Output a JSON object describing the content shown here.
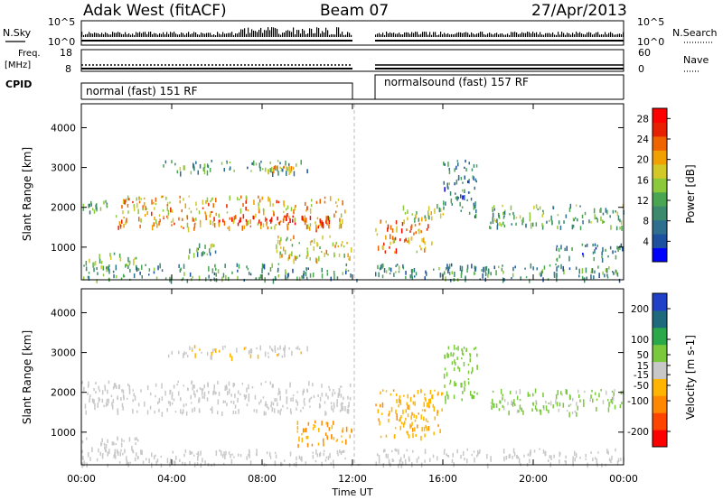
{
  "header": {
    "station": "Adak West (fitACF)",
    "beam": "Beam 07",
    "date": "27/Apr/2013"
  },
  "summary_panels": {
    "nsky_label": "N.Sky",
    "nsky_ticks": [
      "10^5",
      "10^0"
    ],
    "nsearch_label": "N.Search",
    "nsearch_ticks": [
      "10^5",
      "10^0"
    ],
    "freq_label": "Freq.",
    "freq_unit": "[MHz]",
    "freq_ticks": [
      "18",
      "8"
    ],
    "nave_label": "Nave",
    "nave_ticks": [
      "60",
      "0"
    ],
    "cpid_label": "CPID",
    "cpid_segments": [
      {
        "label": "normal (fast) 151 RF",
        "start_ut": 0,
        "end_ut": 12
      },
      {
        "label": "normalsound (fast) 157 RF",
        "start_ut": 13,
        "end_ut": 24
      }
    ]
  },
  "chart_data": [
    {
      "type": "heatmap",
      "name": "power",
      "ylabel": "Slant Range [km]",
      "y_ticks": [
        "4000",
        "3000",
        "2000",
        "1000"
      ],
      "y_tick_values": [
        4000,
        3000,
        2000,
        1000
      ],
      "ylim": [
        180,
        4600
      ],
      "xlim": [
        0,
        24
      ],
      "x_tick_labels": [
        "00:00",
        "04:00",
        "08:00",
        "12:00",
        "16:00",
        "20:00",
        "00:00"
      ],
      "x_tick_values": [
        0,
        4,
        8,
        12,
        16,
        20,
        24
      ],
      "xlabel": "Time UT",
      "data_gap_ut": [
        12,
        13
      ],
      "colorbar": {
        "label": "Power [dB]",
        "tick_labels": [
          "28",
          "24",
          "20",
          "16",
          "12",
          "8",
          "4"
        ],
        "tick_values": [
          28,
          24,
          20,
          16,
          12,
          8,
          4
        ],
        "range": [
          0,
          30
        ],
        "colors": [
          "#0000ff",
          "#1e50a0",
          "#2e6e8e",
          "#3c8a6e",
          "#4aa552",
          "#8cc83c",
          "#d2c828",
          "#f0a000",
          "#f06400",
          "#e62000",
          "#ff0000"
        ]
      },
      "echo_regions": [
        {
          "t": [
            0.0,
            1.2
          ],
          "r": [
            1900,
            2200
          ],
          "level": 9
        },
        {
          "t": [
            1.5,
            11.8
          ],
          "r": [
            1500,
            2300
          ],
          "level": 20
        },
        {
          "t": [
            6.0,
            11.0
          ],
          "r": [
            1600,
            1800
          ],
          "level": 27
        },
        {
          "t": [
            3.6,
            10.2
          ],
          "r": [
            2900,
            3200
          ],
          "level": 11
        },
        {
          "t": [
            8.0,
            9.5
          ],
          "r": [
            2950,
            3050
          ],
          "level": 18
        },
        {
          "t": [
            0.0,
            2.5
          ],
          "r": [
            500,
            900
          ],
          "level": 14
        },
        {
          "t": [
            4.5,
            6.0
          ],
          "r": [
            800,
            1100
          ],
          "level": 11
        },
        {
          "t": [
            8.5,
            12.0
          ],
          "r": [
            700,
            1300
          ],
          "level": 18
        },
        {
          "t": [
            13.0,
            15.5
          ],
          "r": [
            900,
            1700
          ],
          "level": 22
        },
        {
          "t": [
            14.0,
            16.0
          ],
          "r": [
            1700,
            2100
          ],
          "level": 15
        },
        {
          "t": [
            16.0,
            17.5
          ],
          "r": [
            1800,
            3200
          ],
          "level": 8
        },
        {
          "t": [
            18.0,
            24.0
          ],
          "r": [
            1500,
            2100
          ],
          "level": 12
        },
        {
          "t": [
            21.0,
            24.0
          ],
          "r": [
            700,
            1100
          ],
          "level": 8
        },
        {
          "t": [
            0.0,
            24.0
          ],
          "r": [
            200,
            600
          ],
          "level": 10
        }
      ]
    },
    {
      "type": "heatmap",
      "name": "velocity",
      "ylabel": "Slant Range [km]",
      "y_ticks": [
        "4000",
        "3000",
        "2000",
        "1000"
      ],
      "y_tick_values": [
        4000,
        3000,
        2000,
        1000
      ],
      "ylim": [
        180,
        4600
      ],
      "xlim": [
        0,
        24
      ],
      "x_tick_labels": [
        "00:00",
        "04:00",
        "08:00",
        "12:00",
        "16:00",
        "20:00",
        "00:00"
      ],
      "x_tick_values": [
        0,
        4,
        8,
        12,
        16,
        20,
        24
      ],
      "xlabel": "Time UT",
      "data_gap_ut": [
        12,
        13
      ],
      "colorbar": {
        "label": "Velocity [m s-1]",
        "tick_labels": [
          "200",
          "100",
          "50",
          "15",
          "-15",
          "-50",
          "-100",
          "-200"
        ],
        "tick_values": [
          200,
          100,
          50,
          15,
          -15,
          -50,
          -100,
          -200
        ],
        "range": [
          -250,
          250
        ],
        "colors": [
          "#ff0000",
          "#ff4400",
          "#ff8800",
          "#ffb400",
          "#c8c8c8",
          "#7ac83c",
          "#2aa84a",
          "#1e6a7c",
          "#2040c8"
        ]
      },
      "echo_regions": [
        {
          "t": [
            0.0,
            12.0
          ],
          "r": [
            1500,
            2300
          ],
          "level": 0
        },
        {
          "t": [
            3.6,
            10.2
          ],
          "r": [
            2900,
            3200
          ],
          "level": -20
        },
        {
          "t": [
            0.0,
            2.5
          ],
          "r": [
            500,
            900
          ],
          "level": 0
        },
        {
          "t": [
            9.5,
            12.0
          ],
          "r": [
            700,
            1300
          ],
          "level": -80
        },
        {
          "t": [
            13.0,
            16.0
          ],
          "r": [
            900,
            2100
          ],
          "level": -70
        },
        {
          "t": [
            16.0,
            17.5
          ],
          "r": [
            1800,
            3200
          ],
          "level": 60
        },
        {
          "t": [
            18.0,
            24.0
          ],
          "r": [
            1500,
            2100
          ],
          "level": 40
        },
        {
          "t": [
            0.0,
            24.0
          ],
          "r": [
            200,
            600
          ],
          "level": 0
        }
      ]
    }
  ]
}
